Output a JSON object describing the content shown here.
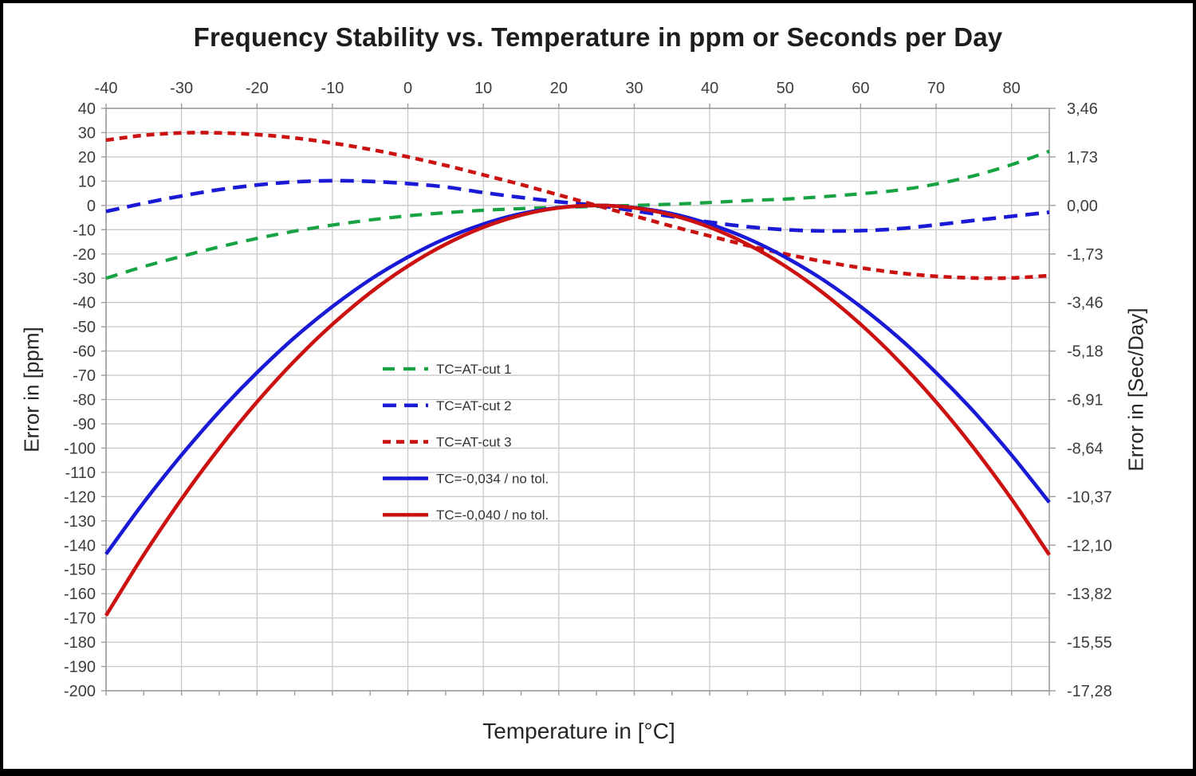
{
  "title": "Frequency Stability vs. Temperature in ppm or Seconds per Day",
  "x_axis": {
    "title": "Temperature in [°C]",
    "tick_labels": [
      "-40",
      "-30",
      "-20",
      "-10",
      "0",
      "10",
      "20",
      "30",
      "40",
      "50",
      "60",
      "70",
      "80"
    ],
    "range": [
      -40,
      85
    ],
    "minor_tick_step": 5
  },
  "y_axis_left": {
    "title": "Error in [ppm]",
    "tick_labels": [
      "40",
      "30",
      "20",
      "10",
      "0",
      "-10",
      "-20",
      "-30",
      "-40",
      "-50",
      "-60",
      "-70",
      "-80",
      "-90",
      "-100",
      "-110",
      "-120",
      "-130",
      "-140",
      "-150",
      "-160",
      "-170",
      "-180",
      "-190",
      "-200"
    ],
    "range": [
      -200,
      40
    ]
  },
  "y_axis_right": {
    "title": "Error in [Sec/Day]",
    "ticks": [
      {
        "ppm": 40,
        "label": "3,46"
      },
      {
        "ppm": 20,
        "label": "1,73"
      },
      {
        "ppm": 0,
        "label": "0,00"
      },
      {
        "ppm": -20,
        "label": "-1,73"
      },
      {
        "ppm": -40,
        "label": "-3,46"
      },
      {
        "ppm": -60,
        "label": "-5,18"
      },
      {
        "ppm": -80,
        "label": "-6,91"
      },
      {
        "ppm": -100,
        "label": "-8,64"
      },
      {
        "ppm": -120,
        "label": "-10,37"
      },
      {
        "ppm": -140,
        "label": "-12,10"
      },
      {
        "ppm": -160,
        "label": "-13,82"
      },
      {
        "ppm": -180,
        "label": "-15,55"
      },
      {
        "ppm": -200,
        "label": "-17,28"
      }
    ]
  },
  "colors": {
    "background": "#ffffff",
    "frame": "#000000",
    "grid": "#c9c9c9",
    "plot_border": "#9b9b9b",
    "tick": "#9b9b9b",
    "text": "#3c3c3c",
    "title_text": "#1d1d1d",
    "green": "#18a342",
    "blue": "#1a1ad6",
    "red": "#cc1111"
  },
  "chart_data": {
    "type": "line",
    "title": "Frequency Stability vs. Temperature in ppm or Seconds per Day",
    "xlabel": "Temperature in [°C]",
    "ylabel_left": "Error in [ppm]",
    "ylabel_right": "Error in [Sec/Day]",
    "xlim": [
      -40,
      85
    ],
    "ylim": [
      -200,
      40
    ],
    "grid": true,
    "legend_position": "inside-center-left",
    "x": [
      -40,
      -35,
      -30,
      -25,
      -20,
      -15,
      -10,
      -5,
      0,
      5,
      10,
      15,
      20,
      25,
      30,
      35,
      40,
      45,
      50,
      55,
      60,
      65,
      70,
      75,
      80,
      85
    ],
    "series": [
      {
        "name": "TC=AT-cut 1",
        "color": "#18a342",
        "line_style": "long-dash",
        "dash": "15 11",
        "width": 4.2,
        "values": [
          -30,
          -25.2,
          -21,
          -17.1,
          -13.6,
          -10.6,
          -8.1,
          -6,
          -4.3,
          -3,
          -2,
          -1.3,
          -0.8,
          -0.4,
          0,
          0.5,
          1.2,
          2,
          2.6,
          3.6,
          4.8,
          6.3,
          8.8,
          12.2,
          16.8,
          22.3
        ]
      },
      {
        "name": "TC=AT-cut 2",
        "color": "#1a1ad6",
        "line_style": "long-dash",
        "dash": "17 10",
        "width": 4.6,
        "values": [
          -2.5,
          0.9,
          3.9,
          6.5,
          8.4,
          9.7,
          10.2,
          9.9,
          9,
          7.6,
          5.3,
          3.3,
          1.5,
          0,
          -2.2,
          -4.6,
          -6.9,
          -8.8,
          -10,
          -10.5,
          -10.4,
          -9.6,
          -8,
          -6.2,
          -4.5,
          -2.8
        ]
      },
      {
        "name": "TC=AT-cut 3",
        "color": "#cc1111",
        "line_style": "short-dash",
        "dash": "10 7",
        "width": 4.6,
        "values": [
          26.9,
          28.9,
          29.9,
          29.9,
          29.2,
          27.8,
          25.7,
          23.1,
          20,
          16.5,
          12.6,
          8.6,
          4.3,
          0,
          -4.3,
          -8.6,
          -12.6,
          -16.5,
          -20,
          -23.1,
          -25.7,
          -27.8,
          -29.2,
          -29.9,
          -29.9,
          -28.9
        ]
      },
      {
        "name": "TC=-0,034 / no tol.",
        "color": "#1a1ad6",
        "line_style": "solid",
        "dash": "",
        "width": 4.6,
        "values": [
          -143.7,
          -122.4,
          -102.9,
          -85,
          -68.9,
          -54.4,
          -41.7,
          -30.6,
          -21.3,
          -13.6,
          -7.7,
          -3.4,
          -0.9,
          0,
          -0.9,
          -3.4,
          -7.7,
          -13.6,
          -21.3,
          -30.6,
          -41.7,
          -54.4,
          -68.9,
          -85,
          -102.9,
          -122.4
        ]
      },
      {
        "name": "TC=-0,040 / no tol.",
        "color": "#cc1111",
        "line_style": "solid",
        "dash": "",
        "width": 4.6,
        "values": [
          -169,
          -144,
          -121,
          -100,
          -81,
          -64,
          -49,
          -36,
          -25,
          -16,
          -9,
          -4,
          -1,
          0,
          -1,
          -4,
          -9,
          -16,
          -25,
          -36,
          -49,
          -64,
          -81,
          -100,
          -121,
          -144
        ]
      }
    ]
  }
}
